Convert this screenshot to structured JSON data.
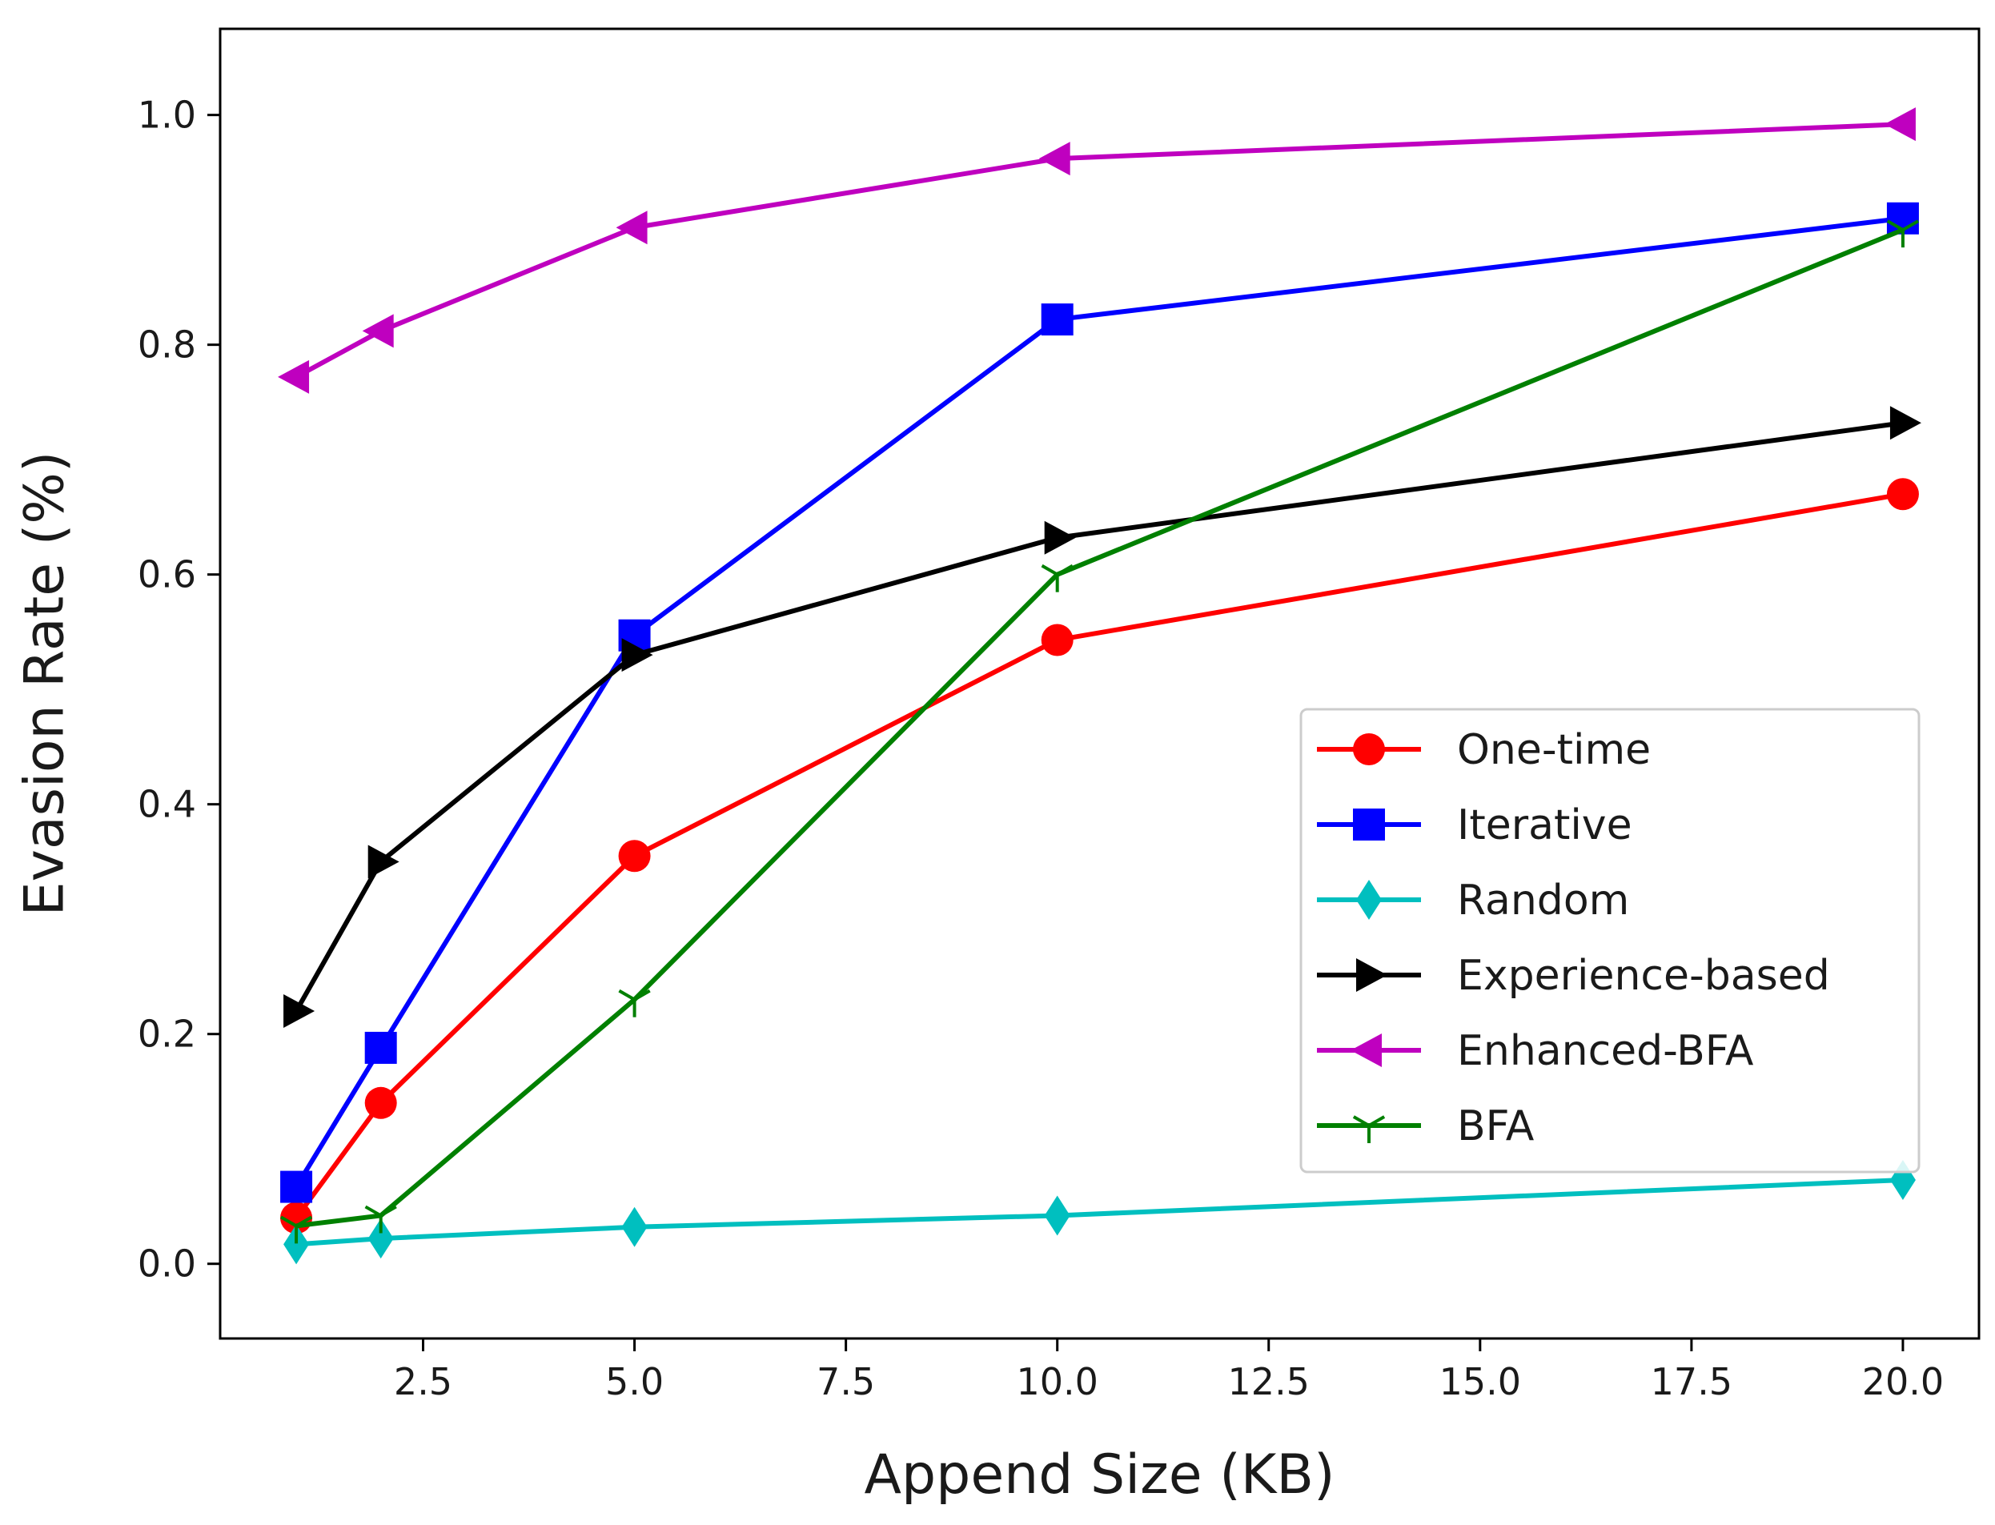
{
  "chart_data": {
    "type": "line",
    "title": "",
    "xlabel": "Append Size (KB)",
    "ylabel": "Evasion Rate (%)",
    "xlim": [
      0.1,
      20.9
    ],
    "ylim": [
      -0.065,
      1.075
    ],
    "xticks": [
      2.5,
      5.0,
      7.5,
      10.0,
      12.5,
      15.0,
      17.5,
      20.0
    ],
    "xtick_labels": [
      "2.5",
      "5.0",
      "7.5",
      "10.0",
      "12.5",
      "15.0",
      "17.5",
      "20.0"
    ],
    "yticks": [
      0.0,
      0.2,
      0.4,
      0.6,
      0.8,
      1.0
    ],
    "ytick_labels": [
      "0.0",
      "0.2",
      "0.4",
      "0.6",
      "0.8",
      "1.0"
    ],
    "grid": false,
    "legend_position": "center-right",
    "x": [
      1,
      2,
      5,
      10,
      20
    ],
    "series": [
      {
        "name": "One-time",
        "color": "#ff0000",
        "marker": "circle",
        "values": [
          0.04,
          0.14,
          0.355,
          0.543,
          0.67
        ]
      },
      {
        "name": "Iterative",
        "color": "#0000ff",
        "marker": "square",
        "values": [
          0.067,
          0.188,
          0.547,
          0.822,
          0.91
        ]
      },
      {
        "name": "Random",
        "color": "#00bfbf",
        "marker": "thin-diamond",
        "values": [
          0.017,
          0.022,
          0.032,
          0.042,
          0.073
        ]
      },
      {
        "name": "Experience-based",
        "color": "#000000",
        "marker": "triangle-right",
        "values": [
          0.22,
          0.35,
          0.53,
          0.632,
          0.732
        ]
      },
      {
        "name": "Enhanced-BFA",
        "color": "#bf00bf",
        "marker": "triangle-left",
        "values": [
          0.772,
          0.812,
          0.902,
          0.962,
          0.992
        ]
      },
      {
        "name": "BFA",
        "color": "#008000",
        "marker": "tri-down",
        "values": [
          0.033,
          0.042,
          0.23,
          0.6,
          0.9
        ]
      }
    ]
  }
}
